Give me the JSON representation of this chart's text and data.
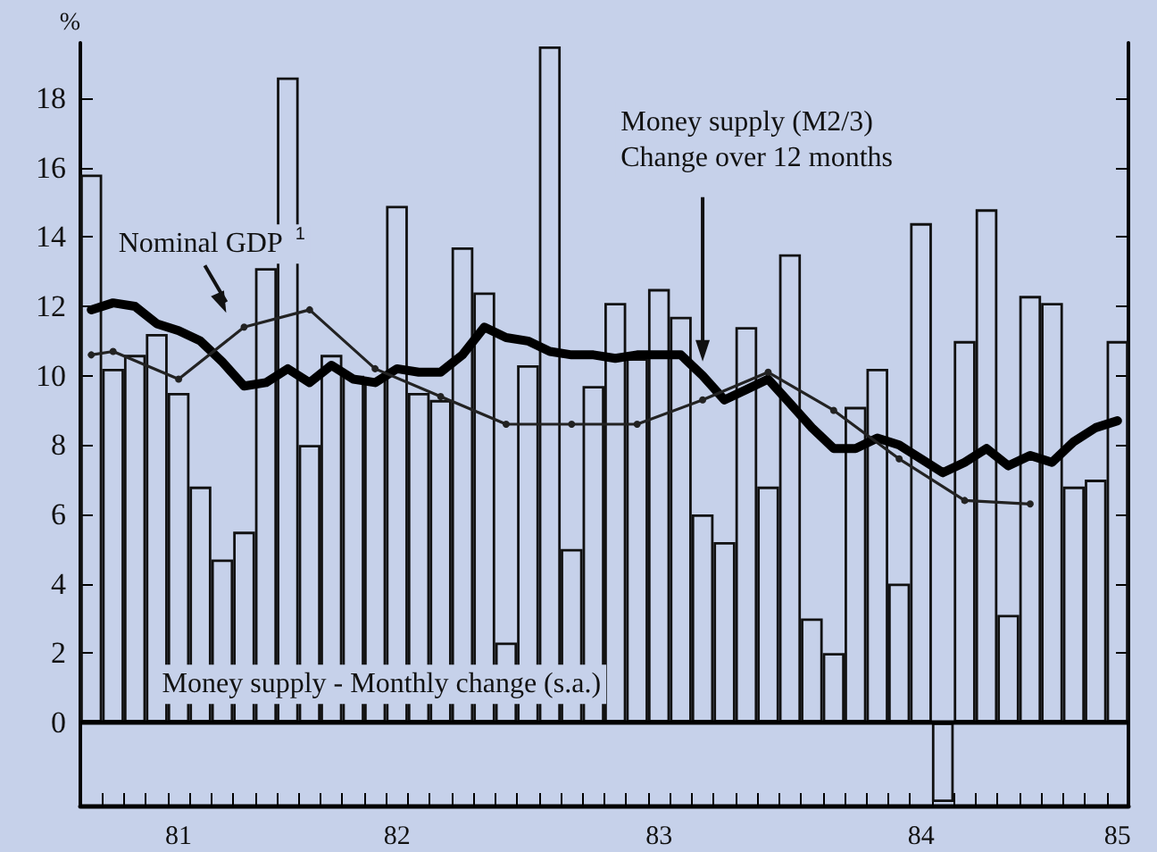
{
  "chart_data": {
    "type": "bar",
    "ylabel": "%",
    "categories": [
      null,
      null,
      null,
      null,
      "81",
      null,
      null,
      null,
      null,
      null,
      null,
      null,
      null,
      null,
      "82",
      null,
      null,
      null,
      null,
      null,
      null,
      null,
      null,
      null,
      null,
      null,
      "83",
      null,
      null,
      null,
      null,
      null,
      null,
      null,
      null,
      null,
      null,
      null,
      "84",
      null,
      null,
      null,
      null,
      null,
      null,
      null,
      null,
      "85"
    ],
    "ylim": [
      -2.4,
      19.6
    ],
    "yticks": [
      0,
      2,
      4,
      6,
      8,
      10,
      12,
      14,
      16,
      18
    ],
    "grid": false,
    "legend": false,
    "ref_lines": [
      {
        "axis": "y",
        "value": 0,
        "color": "#000000"
      }
    ],
    "series": [
      {
        "name": "Money supply - Monthly change (s.a.)",
        "color": "#111111",
        "values": [
          15.8,
          10.2,
          10.6,
          11.2,
          9.5,
          6.8,
          4.7,
          5.5,
          13.1,
          18.6,
          8.0,
          10.6,
          10.0,
          9.9,
          14.9,
          9.5,
          9.3,
          13.7,
          12.4,
          2.3,
          10.3,
          19.5,
          5.0,
          9.7,
          12.1,
          10.5,
          12.5,
          11.7,
          6.0,
          5.2,
          11.4,
          6.8,
          13.5,
          3.0,
          2.0,
          9.1,
          10.2,
          4.0,
          14.4,
          -2.3,
          11.0,
          14.8,
          3.1,
          12.3,
          12.1,
          6.8,
          7.0,
          11.0
        ]
      },
      {
        "name": "Money supply (M2/3)\nChange over 12 months",
        "type": "line",
        "color": "#000000",
        "values": [
          11.9,
          12.1,
          12.0,
          11.5,
          11.3,
          11.0,
          10.4,
          9.7,
          9.8,
          10.2,
          9.8,
          10.3,
          9.9,
          9.8,
          10.2,
          10.1,
          10.1,
          10.6,
          11.4,
          11.1,
          11.0,
          10.7,
          10.6,
          10.6,
          10.5,
          10.6,
          10.6,
          10.6,
          10.0,
          9.3,
          9.6,
          9.9,
          9.2,
          8.5,
          7.9,
          7.9,
          8.2,
          8.0,
          7.6,
          7.2,
          7.5,
          7.9,
          7.4,
          7.7,
          7.5,
          8.1,
          8.5,
          8.7
        ]
      },
      {
        "name": "Nominal GDP $^{1}$",
        "type": "line",
        "color": "#222222",
        "marker": "circle",
        "values": [
          10.6,
          10.7,
          null,
          null,
          9.9,
          null,
          null,
          11.4,
          null,
          null,
          11.9,
          null,
          null,
          10.2,
          null,
          null,
          9.4,
          null,
          null,
          8.6,
          null,
          null,
          8.6,
          null,
          null,
          8.6,
          null,
          null,
          9.3,
          null,
          null,
          10.1,
          null,
          null,
          9.0,
          null,
          null,
          7.6,
          null,
          null,
          6.4,
          null,
          null,
          6.3,
          null,
          null,
          null,
          null
        ]
      }
    ]
  }
}
